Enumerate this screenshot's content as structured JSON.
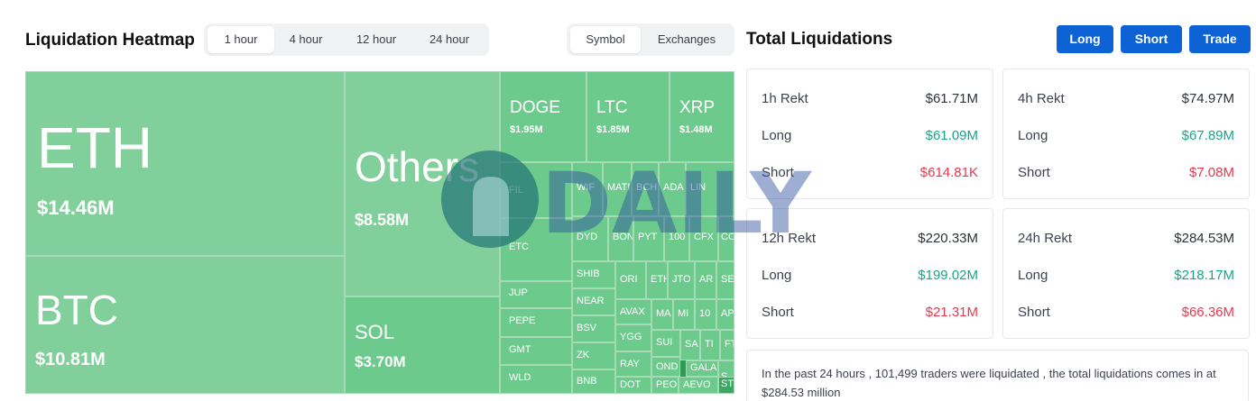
{
  "heatmap_section": {
    "title": "Liquidation Heatmap",
    "time_tabs": [
      "1 hour",
      "4 hour",
      "12 hour",
      "24 hour"
    ],
    "active_time_tab": "1 hour",
    "view_tabs": [
      "Symbol",
      "Exchanges"
    ],
    "active_view_tab": "Symbol"
  },
  "totals_section": {
    "title": "Total Liquidations",
    "buttons": [
      "Long",
      "Short",
      "Trade"
    ],
    "cards": [
      {
        "label": "1h Rekt",
        "total": "$61.71M",
        "long_label": "Long",
        "long": "$61.09M",
        "short_label": "Short",
        "short": "$614.81K"
      },
      {
        "label": "4h Rekt",
        "total": "$74.97M",
        "long_label": "Long",
        "long": "$67.89M",
        "short_label": "Short",
        "short": "$7.08M"
      },
      {
        "label": "12h Rekt",
        "total": "$220.33M",
        "long_label": "Long",
        "long": "$199.02M",
        "short_label": "Short",
        "short": "$21.31M"
      },
      {
        "label": "24h Rekt",
        "total": "$284.53M",
        "long_label": "Long",
        "long": "$218.17M",
        "short_label": "Short",
        "short": "$66.36M"
      }
    ],
    "summary": "In the past 24 hours , 101,499 traders were liquidated , the total liquidations comes in at $284.53 million"
  },
  "heatmap_tiles": [
    {
      "symbol": "ETH",
      "value": "$14.46M"
    },
    {
      "symbol": "BTC",
      "value": "$10.81M"
    },
    {
      "symbol": "Others",
      "value": "$8.58M"
    },
    {
      "symbol": "SOL",
      "value": "$3.70M"
    },
    {
      "symbol": "DOGE",
      "value": "$1.95M"
    },
    {
      "symbol": "LTC",
      "value": "$1.85M"
    },
    {
      "symbol": "XRP",
      "value": "$1.48M"
    },
    {
      "symbol": "FIL",
      "value": ""
    },
    {
      "symbol": "ETC",
      "value": ""
    },
    {
      "symbol": "JUP",
      "value": ""
    },
    {
      "symbol": "PEPE",
      "value": ""
    },
    {
      "symbol": "GMT",
      "value": ""
    },
    {
      "symbol": "WLD",
      "value": ""
    },
    {
      "symbol": "WIF",
      "value": ""
    },
    {
      "symbol": "MATI",
      "value": ""
    },
    {
      "symbol": "BCH",
      "value": ""
    },
    {
      "symbol": "ADA",
      "value": ""
    },
    {
      "symbol": "LIN",
      "value": ""
    },
    {
      "symbol": "DYD",
      "value": ""
    },
    {
      "symbol": "BON",
      "value": ""
    },
    {
      "symbol": "PYT",
      "value": ""
    },
    {
      "symbol": "100",
      "value": ""
    },
    {
      "symbol": "CFX",
      "value": ""
    },
    {
      "symbol": "CO",
      "value": ""
    },
    {
      "symbol": "SHIB",
      "value": ""
    },
    {
      "symbol": "ORI",
      "value": ""
    },
    {
      "symbol": "ETH",
      "value": ""
    },
    {
      "symbol": "JTO",
      "value": ""
    },
    {
      "symbol": "AR",
      "value": ""
    },
    {
      "symbol": "SE",
      "value": ""
    },
    {
      "symbol": "NEAR",
      "value": ""
    },
    {
      "symbol": "AVAX",
      "value": ""
    },
    {
      "symbol": "MA",
      "value": ""
    },
    {
      "symbol": "MI",
      "value": ""
    },
    {
      "symbol": "10",
      "value": ""
    },
    {
      "symbol": "AP",
      "value": ""
    },
    {
      "symbol": "BSV",
      "value": ""
    },
    {
      "symbol": "YGG",
      "value": ""
    },
    {
      "symbol": "SUI",
      "value": ""
    },
    {
      "symbol": "SA",
      "value": ""
    },
    {
      "symbol": "TI",
      "value": ""
    },
    {
      "symbol": "FT",
      "value": ""
    },
    {
      "symbol": "ZK",
      "value": ""
    },
    {
      "symbol": "RAY",
      "value": ""
    },
    {
      "symbol": "OND",
      "value": ""
    },
    {
      "symbol": "GALA",
      "value": ""
    },
    {
      "symbol": "S",
      "value": ""
    },
    {
      "symbol": "BNB",
      "value": ""
    },
    {
      "symbol": "DOT",
      "value": ""
    },
    {
      "symbol": "PEO",
      "value": ""
    },
    {
      "symbol": "AEVO",
      "value": ""
    },
    {
      "symbol": "ST",
      "value": ""
    }
  ],
  "watermark": {
    "text": "ODAILY"
  },
  "colors": {
    "accent_button": "#0d63d6",
    "long_green": "#17a589",
    "short_red": "#e8384f",
    "tile_light": "#81d09b",
    "tile_mid": "#6ccb8c",
    "tile_dark": "#3aa862"
  }
}
